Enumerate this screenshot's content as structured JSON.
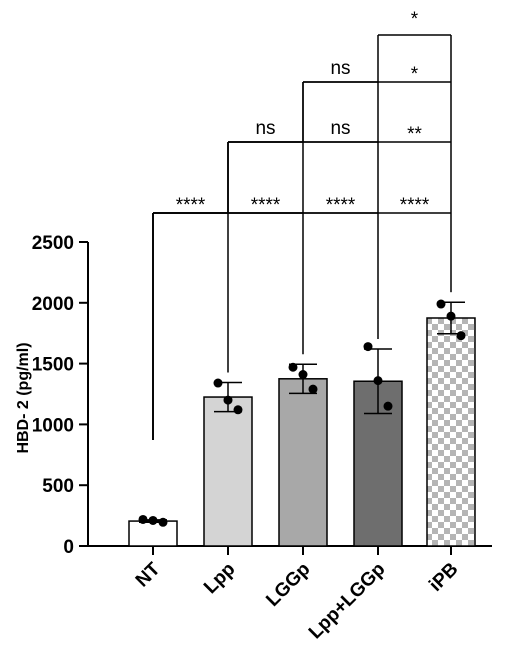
{
  "chart_data": {
    "type": "bar",
    "ylabel": "HBD- 2 (pg/ml)",
    "ylim": [
      0,
      2500
    ],
    "yticks": [
      0,
      500,
      1000,
      1500,
      2000,
      2500
    ],
    "categories": [
      "NT",
      "Lpp",
      "LGGp",
      "Lpp+LGGp",
      "iPB"
    ],
    "values": [
      205,
      1225,
      1375,
      1355,
      1875
    ],
    "errors": [
      10,
      120,
      120,
      265,
      130
    ],
    "points": [
      [
        218,
        210,
        195
      ],
      [
        1340,
        1200,
        1120
      ],
      [
        1470,
        1410,
        1290
      ],
      [
        1640,
        1360,
        1150
      ],
      [
        1990,
        1890,
        1730
      ]
    ],
    "bar_fills": [
      "#ffffff",
      "#d4d4d4",
      "#a8a8a8",
      "#6e6e6e",
      "checkered"
    ],
    "significance": [
      {
        "from": 0,
        "to": 1,
        "label": "****",
        "level": 0
      },
      {
        "from": 0,
        "to": 2,
        "label": "****",
        "level": 0
      },
      {
        "from": 0,
        "to": 3,
        "label": "****",
        "level": 0
      },
      {
        "from": 0,
        "to": 4,
        "label": "****",
        "level": 0
      },
      {
        "from": 1,
        "to": 2,
        "label": "ns",
        "level": 1
      },
      {
        "from": 1,
        "to": 3,
        "label": "ns",
        "level": 1
      },
      {
        "from": 1,
        "to": 4,
        "label": "**",
        "level": 1
      },
      {
        "from": 2,
        "to": 3,
        "label": "ns",
        "level": 2
      },
      {
        "from": 2,
        "to": 4,
        "label": "*",
        "level": 2
      },
      {
        "from": 3,
        "to": 4,
        "label": "*",
        "level": 3
      }
    ]
  }
}
